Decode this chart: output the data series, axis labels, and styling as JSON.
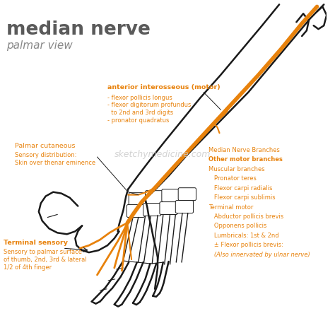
{
  "title": "median nerve",
  "subtitle": "palmar view",
  "background_color": "#ffffff",
  "title_color": "#5a5a5a",
  "subtitle_color": "#888888",
  "orange_color": "#E8820C",
  "dark_line_color": "#1a1a1a",
  "text_orange": "#E8820C",
  "watermark": "sketchymedicine.com",
  "watermark_color": "#c8c8c8",
  "right_annotations": [
    [
      "Median Nerve Branches",
      false,
      false
    ],
    [
      "Other motor branches",
      true,
      false
    ],
    [
      "Muscular branches",
      false,
      false
    ],
    [
      "   Pronator teres",
      false,
      false
    ],
    [
      "   Flexor carpi radialis",
      false,
      false
    ],
    [
      "   Flexor carpi sublimis",
      false,
      false
    ],
    [
      "Terminal motor",
      false,
      false
    ],
    [
      "   Abductor pollicis brevis",
      false,
      false
    ],
    [
      "   Opponens pollicis",
      false,
      false
    ],
    [
      "   Lumbricals: 1st & 2nd",
      false,
      false
    ],
    [
      "   ± Flexor pollicis brevis:",
      false,
      false
    ],
    [
      "   (Also innervated by ulnar nerve)",
      false,
      true
    ]
  ]
}
